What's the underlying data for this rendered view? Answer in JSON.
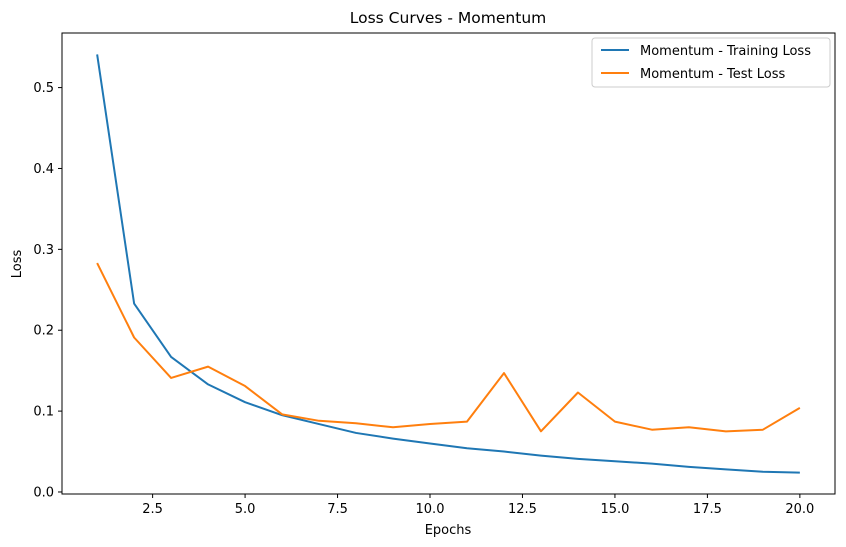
{
  "chart_data": {
    "type": "line",
    "title": "Loss Curves - Momentum",
    "xlabel": "Epochs",
    "ylabel": "Loss",
    "xlim": [
      0.05,
      20.95
    ],
    "ylim": [
      -0.0025,
      0.5675
    ],
    "xticks": [
      2.5,
      5.0,
      7.5,
      10.0,
      12.5,
      15.0,
      17.5,
      20.0
    ],
    "xtick_labels": [
      "2.5",
      "5.0",
      "7.5",
      "10.0",
      "12.5",
      "15.0",
      "17.5",
      "20.0"
    ],
    "yticks": [
      0.0,
      0.1,
      0.2,
      0.3,
      0.4,
      0.5
    ],
    "ytick_labels": [
      "0.0",
      "0.1",
      "0.2",
      "0.3",
      "0.4",
      "0.5"
    ],
    "grid": false,
    "legend_position": "top-right",
    "x": [
      1,
      2,
      3,
      4,
      5,
      6,
      7,
      8,
      9,
      10,
      11,
      12,
      13,
      14,
      15,
      16,
      17,
      18,
      19,
      20
    ],
    "series": [
      {
        "name": "Momentum - Training Loss",
        "color": "#1f77b4",
        "values": [
          0.541,
          0.233,
          0.167,
          0.133,
          0.111,
          0.095,
          0.084,
          0.073,
          0.066,
          0.06,
          0.054,
          0.05,
          0.045,
          0.041,
          0.038,
          0.035,
          0.031,
          0.028,
          0.025,
          0.024
        ]
      },
      {
        "name": "Momentum - Test Loss",
        "color": "#ff7f0e",
        "values": [
          0.283,
          0.191,
          0.141,
          0.155,
          0.131,
          0.096,
          0.088,
          0.085,
          0.08,
          0.084,
          0.087,
          0.147,
          0.075,
          0.123,
          0.087,
          0.077,
          0.08,
          0.075,
          0.077,
          0.104
        ]
      }
    ]
  }
}
